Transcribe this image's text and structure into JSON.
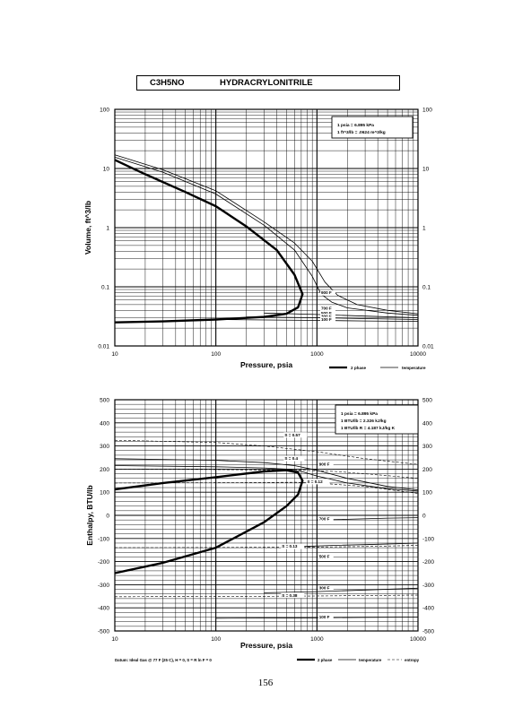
{
  "header": {
    "formula": "C3H5NO",
    "compound": "HYDRACRYLONITRILE"
  },
  "page_number": "156",
  "chart_data": [
    {
      "id": "volume",
      "type": "line",
      "xlabel": "Pressure,  psia",
      "ylabel": "Volume, ft^3/lb",
      "xscale": "log",
      "yscale": "log",
      "xlim": [
        10,
        10000
      ],
      "ylim": [
        0.01,
        100
      ],
      "grid": true,
      "x_ticks": [
        "10",
        "100",
        "1000",
        "10000"
      ],
      "y_ticks": [
        "0.01",
        "0.1",
        "1",
        "10",
        "100"
      ],
      "conversions": [
        "1 psia = 6.895 kPa",
        "1 ft^3/lb = .0624 m^3/kg"
      ],
      "legend": [
        "2 phase",
        "temperature"
      ],
      "series": [
        {
          "name": "2 phase",
          "kind": "phase",
          "x": [
            10,
            20,
            50,
            100,
            200,
            400,
            600,
            720,
            650,
            500,
            300,
            100,
            30,
            10
          ],
          "y": [
            14,
            8,
            4,
            2.3,
            1.05,
            0.42,
            0.16,
            0.075,
            0.045,
            0.035,
            0.031,
            0.028,
            0.026,
            0.025
          ]
        },
        {
          "kind": "temperature",
          "x": [
            10,
            30,
            100,
            300,
            600,
            900,
            1200,
            1600,
            2500,
            5000,
            10000
          ],
          "y": [
            17,
            9.5,
            4.2,
            1.25,
            0.55,
            0.27,
            0.12,
            0.072,
            0.05,
            0.04,
            0.035
          ]
        },
        {
          "kind": "temperature",
          "x": [
            10,
            30,
            100,
            300,
            600,
            900,
            1100,
            1400,
            2000,
            5000,
            10000
          ],
          "y": [
            15.5,
            8.6,
            3.7,
            1.1,
            0.42,
            0.15,
            0.075,
            0.055,
            0.044,
            0.036,
            0.033
          ]
        },
        {
          "kind": "temperature",
          "x": [
            300,
            1000,
            3000,
            10000
          ],
          "y": [
            0.036,
            0.034,
            0.032,
            0.03
          ]
        },
        {
          "kind": "temperature",
          "x": [
            200,
            1000,
            3000,
            10000
          ],
          "y": [
            0.031,
            0.03,
            0.029,
            0.028
          ]
        },
        {
          "kind": "temperature",
          "x": [
            100,
            1000,
            3000,
            10000
          ],
          "y": [
            0.028,
            0.027,
            0.0265,
            0.026
          ]
        }
      ],
      "labels": [
        {
          "text": "900 F",
          "x": 1100,
          "y": 0.075
        },
        {
          "text": "700 F",
          "x": 1100,
          "y": 0.041
        },
        {
          "text": "500 F",
          "x": 1100,
          "y": 0.034
        },
        {
          "text": "300 F",
          "x": 1100,
          "y": 0.03
        },
        {
          "text": "100 F",
          "x": 1100,
          "y": 0.0265
        }
      ]
    },
    {
      "id": "enthalpy",
      "type": "line",
      "xlabel": "Pressure,  psia",
      "ylabel": "Enthalpy, BTU/lb",
      "xscale": "log",
      "yscale": "linear",
      "xlim": [
        10,
        10000
      ],
      "ylim": [
        -500,
        500
      ],
      "grid": true,
      "x_ticks": [
        "10",
        "100",
        "1000",
        "10000"
      ],
      "y_ticks": [
        "-500",
        "-400",
        "-300",
        "-200",
        "-100",
        "0",
        "100",
        "200",
        "300",
        "400",
        "500"
      ],
      "right_ticks": [
        "-500",
        "-400",
        "-300",
        "-200",
        "-100",
        "0",
        "100",
        "200",
        "300",
        "400",
        "500"
      ],
      "conversions": [
        "1 psia = 6.895 kPa",
        "1 BTU/lb = 2.326 kJ/kg",
        "1 BTU/lb R = 4.187 kJ/kg K"
      ],
      "footnote": "Datum: Ideal Gas @ 77 F (25 C),  H = 0,  S = R ln F = 0",
      "legend": [
        "2 phase",
        "temperature",
        "entropy"
      ],
      "series": [
        {
          "name": "2 phase",
          "kind": "phase",
          "x": [
            10,
            30,
            100,
            300,
            500,
            650,
            720,
            650,
            500,
            300,
            100,
            30,
            10
          ],
          "y": [
            112,
            140,
            165,
            190,
            195,
            185,
            150,
            90,
            40,
            -30,
            -140,
            -205,
            -250
          ]
        },
        {
          "kind": "temperature",
          "x": [
            10,
            100,
            300,
            600,
            1000,
            2000,
            5000,
            10000
          ],
          "y": [
            245,
            238,
            228,
            215,
            195,
            160,
            125,
            110
          ]
        },
        {
          "kind": "temperature",
          "x": [
            10,
            100,
            300,
            500,
            700,
            1000,
            2000,
            5000,
            10000
          ],
          "y": [
            215,
            210,
            205,
            200,
            190,
            170,
            140,
            115,
            105
          ]
        },
        {
          "kind": "temperature",
          "x": [
            1000,
            2000,
            5000,
            10000
          ],
          "y": [
            -20,
            -17,
            -12,
            -10
          ]
        },
        {
          "kind": "temperature",
          "x": [
            700,
            1500,
            4000,
            10000
          ],
          "y": [
            -135,
            -130,
            -125,
            -120
          ]
        },
        {
          "kind": "temperature",
          "x": [
            300,
            1000,
            3000,
            10000
          ],
          "y": [
            -335,
            -330,
            -323,
            -315
          ]
        },
        {
          "kind": "temperature",
          "x": [
            100,
            1000,
            3000,
            10000
          ],
          "y": [
            -445,
            -443,
            -441,
            -440
          ]
        },
        {
          "kind": "entropy",
          "x": [
            10,
            100,
            300,
            1000,
            3000,
            10000
          ],
          "y": [
            325,
            315,
            300,
            275,
            245,
            220
          ]
        },
        {
          "kind": "entropy",
          "x": [
            10,
            100,
            300,
            700,
            1500,
            3000,
            10000
          ],
          "y": [
            200,
            198,
            196,
            195,
            190,
            180,
            160
          ]
        },
        {
          "kind": "entropy",
          "x": [
            10,
            100,
            300,
            600,
            1000,
            3000,
            10000
          ],
          "y": [
            140,
            141,
            142,
            143,
            140,
            125,
            95
          ]
        },
        {
          "kind": "entropy",
          "x": [
            10,
            100,
            300,
            1000,
            3000,
            10000
          ],
          "y": [
            -140,
            -139,
            -138,
            -137,
            -135,
            -130
          ]
        },
        {
          "kind": "entropy",
          "x": [
            10,
            100,
            300,
            1000,
            3000,
            10000
          ],
          "y": [
            -352,
            -351,
            -350,
            -349,
            -347,
            -345
          ]
        }
      ],
      "labels": [
        {
          "text": "S = 0.57",
          "x": 480,
          "y": 342
        },
        {
          "text": "S = 0.4",
          "x": 480,
          "y": 240
        },
        {
          "text": "900 F",
          "x": 1050,
          "y": 215
        },
        {
          "text": "S = 0.12",
          "x": 800,
          "y": 140
        },
        {
          "text": "700 F",
          "x": 1050,
          "y": -22
        },
        {
          "text": "S = 0.13",
          "x": 450,
          "y": -140
        },
        {
          "text": "500 F",
          "x": 1050,
          "y": -185
        },
        {
          "text": "300 F",
          "x": 1050,
          "y": -320
        },
        {
          "text": "S = 0.38",
          "x": 450,
          "y": -352
        },
        {
          "text": "100 F",
          "x": 1050,
          "y": -445
        }
      ]
    }
  ]
}
